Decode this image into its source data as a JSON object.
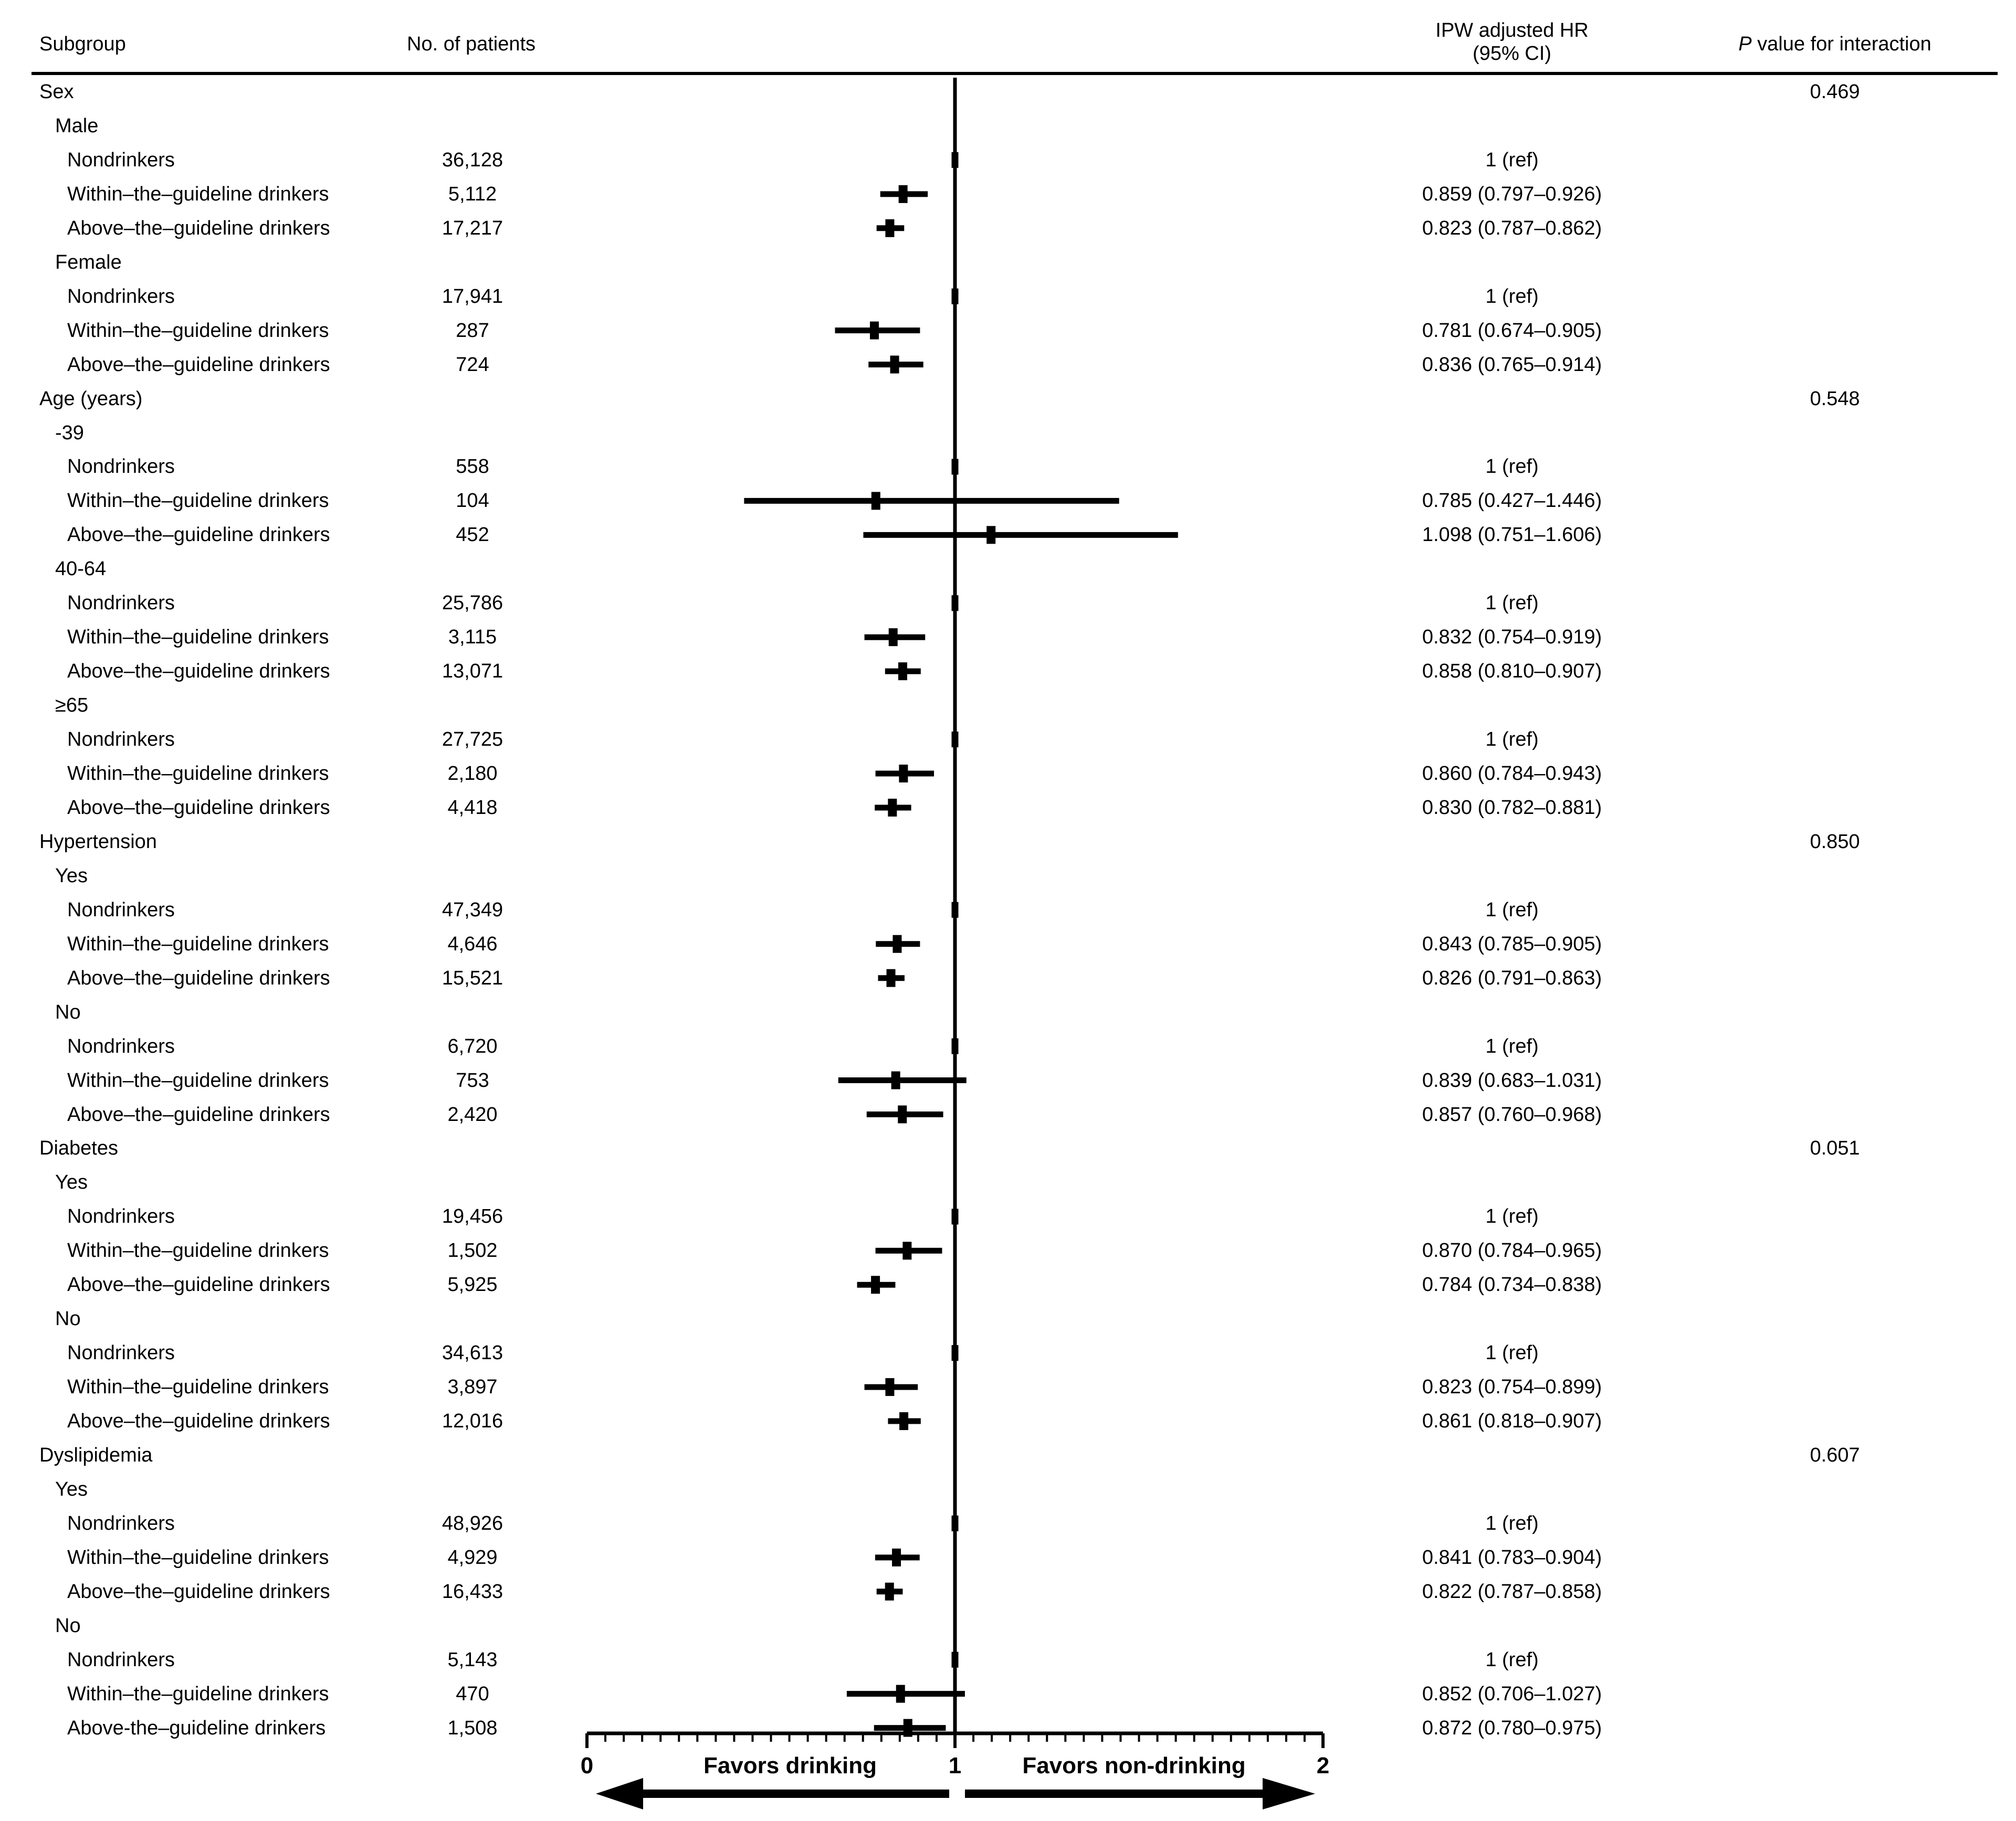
{
  "header": {
    "subgroup": "Subgroup",
    "patients": "No. of patients",
    "hr_line1": "IPW adjusted HR",
    "hr_line2": "(95% CI)",
    "p_italic": "P",
    "p_rest": " value for interaction"
  },
  "chart_data": {
    "type": "forest",
    "xlim": [
      0,
      2
    ],
    "reference_line": 1,
    "tick_labels": [
      "0",
      "1",
      "2"
    ],
    "favor_left": "Favors drinking",
    "favor_right": "Favors non-drinking",
    "rows": [
      {
        "label": "Sex",
        "level": 0,
        "p": "0.469"
      },
      {
        "label": "Male",
        "level": 1
      },
      {
        "label": "Nondrinkers",
        "level": 2,
        "n": "36,128",
        "hr_text": "1 (ref)",
        "hr": 1.0,
        "lo": 1.0,
        "hi": 1.0
      },
      {
        "label": "Within–the–guideline drinkers",
        "level": 2,
        "n": "5,112",
        "hr_text": "0.859 (0.797–0.926)",
        "hr": 0.859,
        "lo": 0.797,
        "hi": 0.926
      },
      {
        "label": "Above–the–guideline drinkers",
        "level": 2,
        "n": "17,217",
        "hr_text": "0.823 (0.787–0.862)",
        "hr": 0.823,
        "lo": 0.787,
        "hi": 0.862
      },
      {
        "label": "Female",
        "level": 1
      },
      {
        "label": "Nondrinkers",
        "level": 2,
        "n": "17,941",
        "hr_text": "1 (ref)",
        "hr": 1.0,
        "lo": 1.0,
        "hi": 1.0
      },
      {
        "label": "Within–the–guideline drinkers",
        "level": 2,
        "n": "287",
        "hr_text": "0.781 (0.674–0.905)",
        "hr": 0.781,
        "lo": 0.674,
        "hi": 0.905
      },
      {
        "label": "Above–the–guideline drinkers",
        "level": 2,
        "n": "724",
        "hr_text": "0.836 (0.765–0.914)",
        "hr": 0.836,
        "lo": 0.765,
        "hi": 0.914
      },
      {
        "label": "Age (years)",
        "level": 0,
        "p": "0.548"
      },
      {
        "label": "-39",
        "level": 1
      },
      {
        "label": "Nondrinkers",
        "level": 2,
        "n": "558",
        "hr_text": "1 (ref)",
        "hr": 1.0,
        "lo": 1.0,
        "hi": 1.0
      },
      {
        "label": "Within–the–guideline drinkers",
        "level": 2,
        "n": "104",
        "hr_text": "0.785 (0.427–1.446)",
        "hr": 0.785,
        "lo": 0.427,
        "hi": 1.446
      },
      {
        "label": "Above–the–guideline drinkers",
        "level": 2,
        "n": "452",
        "hr_text": "1.098 (0.751–1.606)",
        "hr": 1.098,
        "lo": 0.751,
        "hi": 1.606
      },
      {
        "label": "40-64",
        "level": 1
      },
      {
        "label": "Nondrinkers",
        "level": 2,
        "n": "25,786",
        "hr_text": "1 (ref)",
        "hr": 1.0,
        "lo": 1.0,
        "hi": 1.0
      },
      {
        "label": "Within–the–guideline drinkers",
        "level": 2,
        "n": "3,115",
        "hr_text": "0.832 (0.754–0.919)",
        "hr": 0.832,
        "lo": 0.754,
        "hi": 0.919
      },
      {
        "label": "Above–the–guideline drinkers",
        "level": 2,
        "n": "13,071",
        "hr_text": "0.858 (0.810–0.907)",
        "hr": 0.858,
        "lo": 0.81,
        "hi": 0.907
      },
      {
        "label": "≥65",
        "level": 1
      },
      {
        "label": "Nondrinkers",
        "level": 2,
        "n": "27,725",
        "hr_text": "1 (ref)",
        "hr": 1.0,
        "lo": 1.0,
        "hi": 1.0
      },
      {
        "label": "Within–the–guideline drinkers",
        "level": 2,
        "n": "2,180",
        "hr_text": "0.860 (0.784–0.943)",
        "hr": 0.86,
        "lo": 0.784,
        "hi": 0.943
      },
      {
        "label": "Above–the–guideline drinkers",
        "level": 2,
        "n": "4,418",
        "hr_text": "0.830 (0.782–0.881)",
        "hr": 0.83,
        "lo": 0.782,
        "hi": 0.881
      },
      {
        "label": "Hypertension",
        "level": 0,
        "p": "0.850"
      },
      {
        "label": "Yes",
        "level": 1
      },
      {
        "label": "Nondrinkers",
        "level": 2,
        "n": "47,349",
        "hr_text": "1 (ref)",
        "hr": 1.0,
        "lo": 1.0,
        "hi": 1.0
      },
      {
        "label": "Within–the–guideline drinkers",
        "level": 2,
        "n": "4,646",
        "hr_text": "0.843 (0.785–0.905)",
        "hr": 0.843,
        "lo": 0.785,
        "hi": 0.905
      },
      {
        "label": "Above–the–guideline drinkers",
        "level": 2,
        "n": "15,521",
        "hr_text": "0.826 (0.791–0.863)",
        "hr": 0.826,
        "lo": 0.791,
        "hi": 0.863
      },
      {
        "label": "No",
        "level": 1
      },
      {
        "label": "Nondrinkers",
        "level": 2,
        "n": "6,720",
        "hr_text": "1 (ref)",
        "hr": 1.0,
        "lo": 1.0,
        "hi": 1.0
      },
      {
        "label": "Within–the–guideline drinkers",
        "level": 2,
        "n": "753",
        "hr_text": "0.839 (0.683–1.031)",
        "hr": 0.839,
        "lo": 0.683,
        "hi": 1.031
      },
      {
        "label": "Above–the–guideline drinkers",
        "level": 2,
        "n": "2,420",
        "hr_text": "0.857 (0.760–0.968)",
        "hr": 0.857,
        "lo": 0.76,
        "hi": 0.968
      },
      {
        "label": "Diabetes",
        "level": 0,
        "p": "0.051"
      },
      {
        "label": "Yes",
        "level": 1
      },
      {
        "label": "Nondrinkers",
        "level": 2,
        "n": "19,456",
        "hr_text": "1 (ref)",
        "hr": 1.0,
        "lo": 1.0,
        "hi": 1.0
      },
      {
        "label": "Within–the–guideline drinkers",
        "level": 2,
        "n": "1,502",
        "hr_text": "0.870 (0.784–0.965)",
        "hr": 0.87,
        "lo": 0.784,
        "hi": 0.965
      },
      {
        "label": "Above–the–guideline drinkers",
        "level": 2,
        "n": "5,925",
        "hr_text": "0.784 (0.734–0.838)",
        "hr": 0.784,
        "lo": 0.734,
        "hi": 0.838
      },
      {
        "label": "No",
        "level": 1
      },
      {
        "label": "Nondrinkers",
        "level": 2,
        "n": "34,613",
        "hr_text": "1 (ref)",
        "hr": 1.0,
        "lo": 1.0,
        "hi": 1.0
      },
      {
        "label": "Within–the–guideline drinkers",
        "level": 2,
        "n": "3,897",
        "hr_text": "0.823 (0.754–0.899)",
        "hr": 0.823,
        "lo": 0.754,
        "hi": 0.899
      },
      {
        "label": "Above–the–guideline drinkers",
        "level": 2,
        "n": "12,016",
        "hr_text": "0.861 (0.818–0.907)",
        "hr": 0.861,
        "lo": 0.818,
        "hi": 0.907
      },
      {
        "label": "Dyslipidemia",
        "level": 0,
        "p": "0.607"
      },
      {
        "label": "Yes",
        "level": 1
      },
      {
        "label": "Nondrinkers",
        "level": 2,
        "n": "48,926",
        "hr_text": "1 (ref)",
        "hr": 1.0,
        "lo": 1.0,
        "hi": 1.0
      },
      {
        "label": "Within–the–guideline drinkers",
        "level": 2,
        "n": "4,929",
        "hr_text": "0.841 (0.783–0.904)",
        "hr": 0.841,
        "lo": 0.783,
        "hi": 0.904
      },
      {
        "label": "Above–the–guideline drinkers",
        "level": 2,
        "n": "16,433",
        "hr_text": "0.822 (0.787–0.858)",
        "hr": 0.822,
        "lo": 0.787,
        "hi": 0.858
      },
      {
        "label": "No",
        "level": 1
      },
      {
        "label": "Nondrinkers",
        "level": 2,
        "n": "5,143",
        "hr_text": "1 (ref)",
        "hr": 1.0,
        "lo": 1.0,
        "hi": 1.0
      },
      {
        "label": "Within–the–guideline drinkers",
        "level": 2,
        "n": "470",
        "hr_text": "0.852 (0.706–1.027)",
        "hr": 0.852,
        "lo": 0.706,
        "hi": 1.027
      },
      {
        "label": "Above-the–guideline drinkers",
        "level": 2,
        "n": "1,508",
        "hr_text": "0.872 (0.780–0.975)",
        "hr": 0.872,
        "lo": 0.78,
        "hi": 0.975
      }
    ]
  }
}
